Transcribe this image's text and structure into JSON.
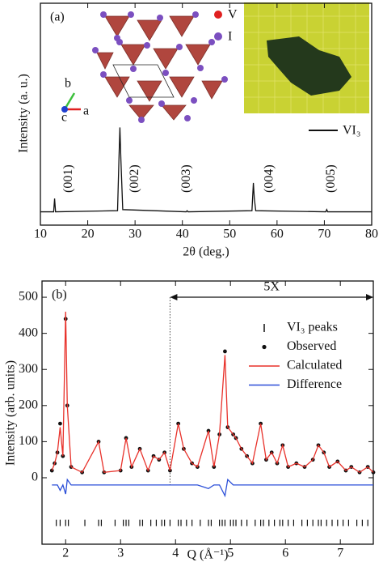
{
  "chart_data": [
    {
      "type": "line",
      "panel_label": "(a)",
      "xlabel": "2θ (deg.)",
      "ylabel": "Intensity (a. u.)",
      "xlim": [
        10,
        80
      ],
      "xticks": [
        10,
        20,
        30,
        40,
        50,
        60,
        70,
        80
      ],
      "ylim": [
        0,
        100
      ],
      "series": [
        {
          "name": "VI₃",
          "color": "#111111",
          "style": "line",
          "x": [
            10,
            12.8,
            13,
            13.2,
            26.3,
            26.6,
            26.8,
            27.0,
            27.4,
            40.8,
            41,
            41.2,
            54.7,
            55,
            55.2,
            55.5,
            70.3,
            70.5,
            70.7,
            80
          ],
          "values": [
            6,
            6,
            12,
            6,
            6.5,
            30,
            44,
            30,
            7,
            6,
            6.5,
            6,
            6.5,
            19,
            12,
            6.5,
            6,
            7,
            6,
            6
          ]
        }
      ],
      "peak_labels": [
        {
          "text": "(001)",
          "x": 16
        },
        {
          "text": "(002)",
          "x": 30
        },
        {
          "text": "(003)",
          "x": 41
        },
        {
          "text": "(004)",
          "x": 58.5
        },
        {
          "text": "(005)",
          "x": 71.5
        }
      ],
      "inset": {
        "atoms": [
          "V",
          "I"
        ],
        "axes": [
          "a",
          "b",
          "c"
        ]
      }
    },
    {
      "type": "line",
      "panel_label": "(b)",
      "xlabel": "Q (Å⁻¹)",
      "ylabel": "Intensity (arb. units)",
      "xlim": [
        1.57,
        7.6
      ],
      "xticks": [
        2,
        3,
        4,
        5,
        6,
        7
      ],
      "ylim": [
        -184,
        545
      ],
      "yticks": [
        0,
        100,
        200,
        300,
        400,
        500
      ],
      "annotation": {
        "text": "5X",
        "x": [
          3.9,
          7.6
        ]
      },
      "series": [
        {
          "name": "VI₃ peaks",
          "color": "#111111",
          "style": "ticks",
          "x": [
            1.83,
            1.9,
            2.0,
            2.05,
            2.35,
            2.6,
            2.65,
            2.9,
            3.05,
            3.1,
            3.15,
            3.35,
            3.4,
            3.55,
            3.65,
            3.75,
            3.8,
            3.9,
            4.05,
            4.1,
            4.2,
            4.3,
            4.45,
            4.6,
            4.65,
            4.8,
            4.85,
            4.9,
            5.0,
            5.05,
            5.1,
            5.2,
            5.3,
            5.45,
            5.55,
            5.6,
            5.7,
            5.8,
            5.9,
            5.95,
            6.05,
            6.15,
            6.3,
            6.4,
            6.5,
            6.6,
            6.65,
            6.75,
            6.85,
            6.95,
            7.05,
            7.15,
            7.3,
            7.4,
            7.5
          ],
          "values": [
            -125,
            -125,
            -125,
            -125,
            -125,
            -125,
            -125,
            -125,
            -125,
            -125,
            -125,
            -125,
            -125,
            -125,
            -125,
            -125,
            -125,
            -125,
            -125,
            -125,
            -125,
            -125,
            -125,
            -125,
            -125,
            -125,
            -125,
            -125,
            -125,
            -125,
            -125,
            -125,
            -125,
            -125,
            -125,
            -125,
            -125,
            -125,
            -125,
            -125,
            -125,
            -125,
            -125,
            -125,
            -125,
            -125,
            -125,
            -125,
            -125,
            -125,
            -125,
            -125,
            -125,
            -125,
            -125
          ]
        },
        {
          "name": "Observed",
          "color": "#111111",
          "style": "points",
          "x": [
            1.75,
            1.8,
            1.85,
            1.9,
            1.95,
            2.0,
            2.03,
            2.1,
            2.3,
            2.6,
            2.7,
            3.0,
            3.1,
            3.2,
            3.35,
            3.5,
            3.6,
            3.7,
            3.8,
            3.9,
            4.05,
            4.15,
            4.3,
            4.4,
            4.6,
            4.7,
            4.8,
            4.9,
            4.95,
            5.05,
            5.1,
            5.2,
            5.3,
            5.4,
            5.55,
            5.65,
            5.75,
            5.85,
            5.95,
            6.05,
            6.2,
            6.35,
            6.5,
            6.6,
            6.7,
            6.8,
            6.95,
            7.1,
            7.2,
            7.35,
            7.5,
            7.6
          ],
          "values": [
            20,
            40,
            70,
            150,
            60,
            440,
            200,
            30,
            15,
            100,
            15,
            20,
            110,
            30,
            80,
            20,
            60,
            50,
            70,
            20,
            150,
            80,
            40,
            30,
            130,
            30,
            120,
            350,
            140,
            120,
            110,
            80,
            60,
            40,
            150,
            50,
            70,
            40,
            90,
            30,
            40,
            30,
            50,
            90,
            70,
            30,
            45,
            20,
            30,
            15,
            30,
            15
          ]
        },
        {
          "name": "Calculated",
          "color": "#e8312a",
          "style": "line",
          "x": [
            1.75,
            1.8,
            1.85,
            1.9,
            1.95,
            2.0,
            2.03,
            2.1,
            2.3,
            2.6,
            2.7,
            3.0,
            3.1,
            3.2,
            3.35,
            3.5,
            3.6,
            3.7,
            3.8,
            3.9,
            4.05,
            4.15,
            4.3,
            4.4,
            4.6,
            4.7,
            4.8,
            4.9,
            4.95,
            5.05,
            5.1,
            5.2,
            5.3,
            5.4,
            5.55,
            5.65,
            5.75,
            5.85,
            5.95,
            6.05,
            6.2,
            6.35,
            6.5,
            6.6,
            6.7,
            6.8,
            6.95,
            7.1,
            7.2,
            7.35,
            7.5,
            7.6
          ],
          "values": [
            20,
            40,
            70,
            140,
            60,
            460,
            200,
            30,
            15,
            100,
            15,
            20,
            110,
            30,
            80,
            20,
            60,
            50,
            70,
            20,
            150,
            80,
            40,
            30,
            130,
            30,
            120,
            340,
            140,
            120,
            110,
            80,
            60,
            40,
            150,
            50,
            70,
            40,
            90,
            30,
            40,
            30,
            50,
            90,
            70,
            30,
            45,
            20,
            30,
            15,
            30,
            15
          ]
        },
        {
          "name": "Difference",
          "color": "#2b4fd8",
          "style": "line",
          "x": [
            1.75,
            1.8,
            1.85,
            1.9,
            1.95,
            2.0,
            2.03,
            2.1,
            2.3,
            2.6,
            2.7,
            3.0,
            3.1,
            3.2,
            3.35,
            3.5,
            3.6,
            3.7,
            3.8,
            3.9,
            4.05,
            4.15,
            4.3,
            4.4,
            4.6,
            4.7,
            4.8,
            4.9,
            4.95,
            5.05,
            5.1,
            5.2,
            5.3,
            5.4,
            5.55,
            5.65,
            5.75,
            5.85,
            5.95,
            6.05,
            6.2,
            6.35,
            6.5,
            6.6,
            6.7,
            6.8,
            6.95,
            7.1,
            7.2,
            7.35,
            7.5,
            7.6
          ],
          "values": [
            -20,
            -20,
            -20,
            -35,
            -20,
            -45,
            -5,
            -20,
            -20,
            -20,
            -20,
            -20,
            -20,
            -20,
            -20,
            -20,
            -20,
            -20,
            -20,
            -20,
            -20,
            -20,
            -20,
            -20,
            -30,
            -20,
            -20,
            -50,
            -5,
            -20,
            -20,
            -20,
            -20,
            -20,
            -20,
            -20,
            -20,
            -20,
            -20,
            -20,
            -20,
            -20,
            -20,
            -20,
            -20,
            -20,
            -20,
            -20,
            -20,
            -20,
            -20,
            -20
          ]
        }
      ]
    }
  ]
}
